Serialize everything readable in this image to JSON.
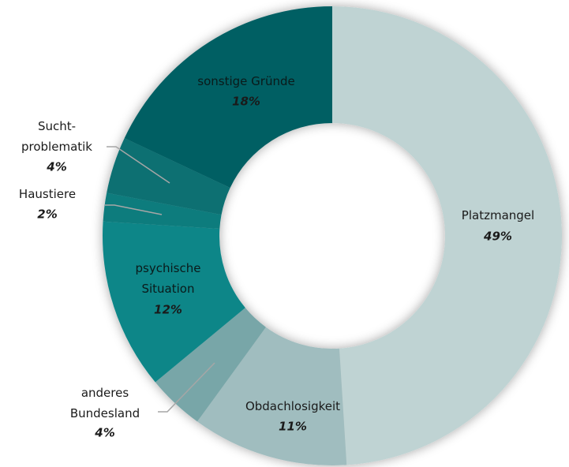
{
  "chart_data": {
    "type": "donut",
    "categories": [
      "Platzmangel",
      "Obdachlosigkeit",
      "anderes\nBundesland",
      "psychische\nSituation",
      "Haustiere",
      "Sucht-\nproblematik",
      "sonstige Gründe"
    ],
    "values": [
      49,
      11,
      4,
      12,
      2,
      4,
      18
    ],
    "value_labels": [
      "49%",
      "11%",
      "4%",
      "12%",
      "2%",
      "4%",
      "18%"
    ],
    "colors": [
      "#bfd3d3",
      "#a0bdbf",
      "#78a6a8",
      "#0b8688",
      "#0a7b7d",
      "#086f72",
      "#065f63"
    ]
  }
}
